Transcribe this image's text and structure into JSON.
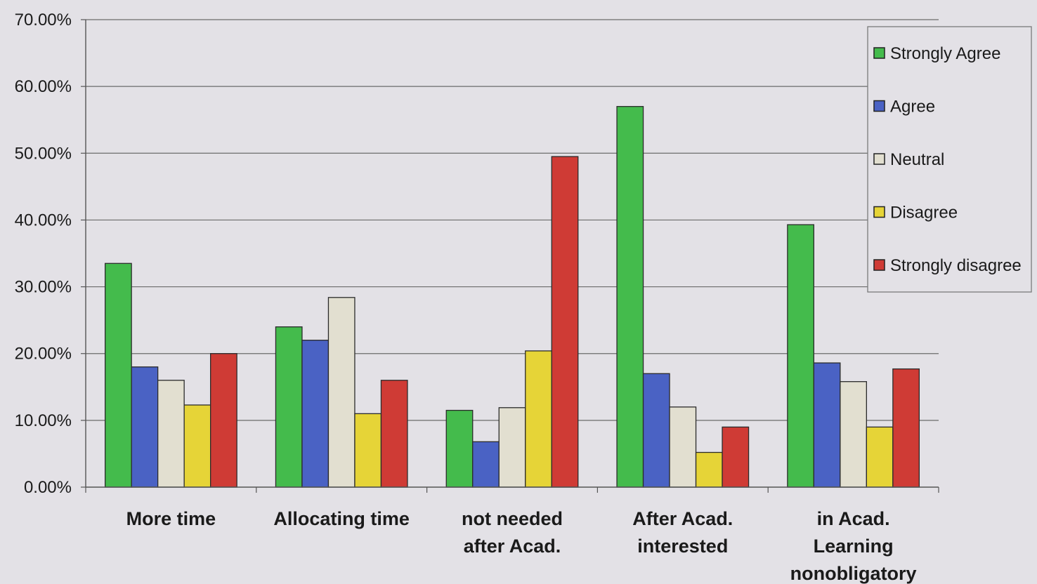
{
  "chart_data": {
    "type": "bar",
    "title": "",
    "xlabel": "",
    "ylabel": "",
    "ylim": [
      0,
      70
    ],
    "yticks": [
      "0.00%",
      "10.00%",
      "20.00%",
      "30.00%",
      "40.00%",
      "50.00%",
      "60.00%",
      "70.00%"
    ],
    "grid": true,
    "legend_position": "top-right",
    "categories": [
      [
        "More time"
      ],
      [
        "Allocating time"
      ],
      [
        "not needed",
        "after Acad."
      ],
      [
        "After Acad.",
        "interested"
      ],
      [
        "in Acad.",
        "Learning",
        "nonobligatory"
      ]
    ],
    "series": [
      {
        "name": "Strongly Agree",
        "color": "#44bb4c",
        "values": [
          33.5,
          24.0,
          11.5,
          57.0,
          39.3
        ]
      },
      {
        "name": "Agree",
        "color": "#4a62c4",
        "values": [
          18.0,
          22.0,
          6.8,
          17.0,
          18.6
        ]
      },
      {
        "name": "Neutral",
        "color": "#e2dfd0",
        "values": [
          16.0,
          28.4,
          11.9,
          12.0,
          15.8
        ]
      },
      {
        "name": "Disagree",
        "color": "#e6d437",
        "values": [
          12.3,
          11.0,
          20.4,
          5.2,
          9.0
        ]
      },
      {
        "name": "Strongly disagree",
        "color": "#cf3b35",
        "values": [
          20.0,
          16.0,
          49.5,
          9.0,
          17.7
        ]
      }
    ]
  }
}
